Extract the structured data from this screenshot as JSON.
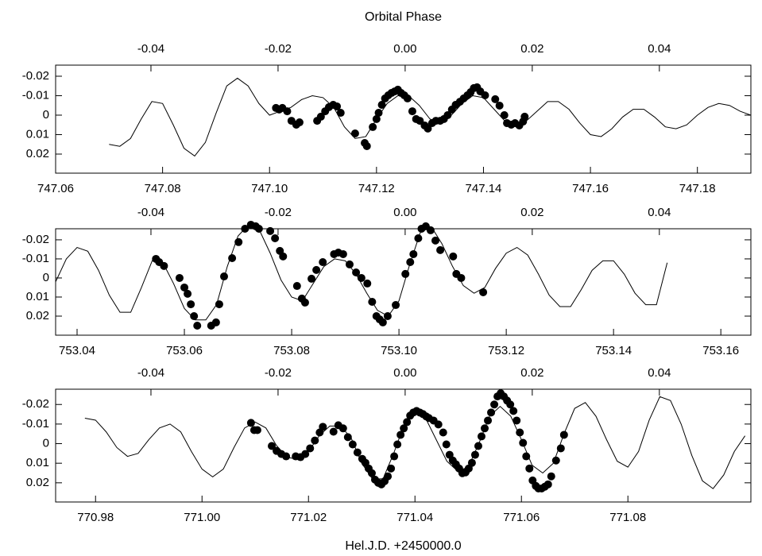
{
  "chart_data": [
    {
      "type": "scatter",
      "x2label": "Orbital Phase",
      "xlim": [
        747.06,
        747.19
      ],
      "xticks": [
        747.06,
        747.08,
        {
          "value": 747.1,
          "label": "747.10"
        },
        747.12,
        747.14,
        747.16,
        747.18
      ],
      "x2lim": [
        -0.055,
        0.0544
      ],
      "x2ticks": [
        -0.04,
        -0.02,
        {
          "value": 0,
          "label": "0.00"
        },
        0.02,
        0.04
      ],
      "ylim": [
        0.0298,
        -0.0257
      ],
      "yticks": [
        -0.02,
        -0.01,
        0,
        0.01,
        0.02
      ],
      "series": [
        {
          "type": "scatter",
          "color": "#000000",
          "x": [
            747.1012,
            747.1018,
            747.1024,
            747.1033,
            747.1041,
            747.105,
            747.1056,
            747.1089,
            747.1096,
            747.1104,
            747.1111,
            747.1119,
            747.1126,
            747.1133,
            747.116,
            747.1178,
            747.1182,
            747.1193,
            747.12,
            747.1204,
            747.121,
            747.1216,
            747.1222,
            747.1228,
            747.1234,
            747.124,
            747.1246,
            747.1252,
            747.1258,
            747.1267,
            747.1274,
            747.1281,
            747.129,
            747.1296,
            747.1304,
            747.1311,
            747.1319,
            747.1326,
            747.1333,
            747.1341,
            747.1348,
            747.1356,
            747.1363,
            747.137,
            747.1376,
            747.1382,
            747.1388,
            747.1394,
            747.1403,
            747.1422,
            747.143,
            747.1439,
            747.1444,
            747.1452,
            747.1459,
            747.1467,
            747.1474,
            747.1477
          ],
          "values": [
            -0.0037,
            -0.0029,
            -0.0037,
            -0.002,
            0.0029,
            0.0049,
            0.0037,
            0.0029,
            0.0008,
            -0.002,
            -0.0041,
            -0.0053,
            -0.0045,
            -0.0012,
            0.0094,
            0.0143,
            0.0159,
            0.0061,
            0.002,
            -0.0012,
            -0.0053,
            -0.0086,
            -0.0102,
            -0.0114,
            -0.0122,
            -0.0131,
            -0.0114,
            -0.0102,
            -0.0086,
            -0.002,
            0.002,
            0.0029,
            0.0053,
            0.0069,
            0.0041,
            0.0029,
            0.0029,
            0.002,
            0,
            -0.0029,
            -0.0053,
            -0.0069,
            -0.0086,
            -0.0102,
            -0.0118,
            -0.0139,
            -0.0143,
            -0.0122,
            -0.0102,
            -0.0082,
            -0.0049,
            0,
            0.0041,
            0.0049,
            0.0041,
            0.0053,
            0.0033,
            0.0008
          ]
        },
        {
          "type": "line",
          "color": "#000000",
          "x": [
            747.07,
            747.072,
            747.074,
            747.076,
            747.078,
            747.08,
            747.082,
            747.084,
            747.086,
            747.088,
            747.09,
            747.092,
            747.094,
            747.096,
            747.098,
            747.1,
            747.102,
            747.104,
            747.106,
            747.108,
            747.11,
            747.112,
            747.114,
            747.116,
            747.118,
            747.12,
            747.122,
            747.124,
            747.126,
            747.128,
            747.13,
            747.132,
            747.134,
            747.136,
            747.138,
            747.14,
            747.142,
            747.144,
            747.146,
            747.148,
            747.15,
            747.152,
            747.154,
            747.156,
            747.158,
            747.16,
            747.162,
            747.164,
            747.166,
            747.168,
            747.17,
            747.172,
            747.174,
            747.176,
            747.178,
            747.18,
            747.182,
            747.184,
            747.186,
            747.188,
            747.19
          ],
          "values": [
            0.015,
            0.016,
            0.012,
            0.002,
            -0.007,
            -0.006,
            0.005,
            0.017,
            0.021,
            0.014,
            -0.001,
            -0.015,
            -0.019,
            -0.015,
            -0.006,
            0,
            -0.002,
            -0.004,
            -0.008,
            -0.01,
            -0.009,
            -0.004,
            0.006,
            0.012,
            0.011,
            0.002,
            -0.006,
            -0.01,
            -0.01,
            -0.005,
            0.002,
            0.004,
            0,
            -0.006,
            -0.01,
            -0.009,
            -0.003,
            0.003,
            0.005,
            0.003,
            -0.002,
            -0.007,
            -0.007,
            -0.003,
            0.004,
            0.01,
            0.011,
            0.007,
            0.001,
            -0.003,
            -0.003,
            0.001,
            0.006,
            0.007,
            0.005,
            0,
            -0.004,
            -0.006,
            -0.005,
            -0.002,
            0
          ]
        }
      ]
    },
    {
      "type": "scatter",
      "xlim": [
        753.036,
        753.1656
      ],
      "xticks": [
        753.04,
        753.06,
        753.08,
        {
          "value": 753.1,
          "label": "753.10"
        },
        753.12,
        753.14,
        753.16
      ],
      "x2lim": [
        -0.055,
        0.0544
      ],
      "x2ticks": [
        -0.04,
        -0.02,
        {
          "value": 0,
          "label": "0.00"
        },
        0.02,
        0.04
      ],
      "ylim": [
        0.03,
        -0.0258
      ],
      "yticks": [
        -0.02,
        -0.01,
        0,
        0.01,
        0.02
      ],
      "series": [
        {
          "type": "scatter",
          "color": "#000000",
          "x": [
            753.0547,
            753.0553,
            753.0562,
            753.0591,
            753.06,
            753.0606,
            753.0612,
            753.0618,
            753.0624,
            753.065,
            753.0659,
            753.0665,
            753.0674,
            753.0689,
            753.0701,
            753.0713,
            753.0724,
            753.0733,
            753.0739,
            753.076,
            753.0769,
            753.0778,
            753.0784,
            753.081,
            753.0819,
            753.0825,
            753.0837,
            753.0846,
            753.0858,
            753.0879,
            753.0887,
            753.0896,
            753.0908,
            753.092,
            753.093,
            753.0941,
            753.095,
            753.0958,
            753.0964,
            753.097,
            753.0979,
            753.0994,
            753.1012,
            753.1021,
            753.1027,
            753.1036,
            753.1042,
            753.105,
            753.1059,
            753.1068,
            753.1077,
            753.1101,
            753.1107,
            753.1116,
            753.1157
          ],
          "values": [
            -0.01,
            -0.0083,
            -0.0063,
            0,
            0.005,
            0.0083,
            0.0138,
            0.02,
            0.025,
            0.025,
            0.0233,
            0.0138,
            -0.0008,
            -0.0104,
            -0.0188,
            -0.0258,
            -0.0279,
            -0.0271,
            -0.0258,
            -0.0246,
            -0.0208,
            -0.0142,
            -0.0113,
            0.0042,
            0.0108,
            0.0129,
            0.0004,
            -0.0042,
            -0.0083,
            -0.0125,
            -0.0133,
            -0.0125,
            -0.0071,
            -0.0029,
            0,
            0.0029,
            0.0125,
            0.02,
            0.0217,
            0.0233,
            0.02,
            0.0142,
            -0.0021,
            -0.0083,
            -0.0125,
            -0.0208,
            -0.0258,
            -0.0271,
            -0.025,
            -0.0196,
            -0.0146,
            -0.0113,
            -0.0021,
            0,
            0.0075
          ]
        },
        {
          "type": "line",
          "color": "#000000",
          "x": [
            753.036,
            753.038,
            753.04,
            753.042,
            753.044,
            753.046,
            753.048,
            753.05,
            753.052,
            753.054,
            753.056,
            753.058,
            753.06,
            753.062,
            753.064,
            753.066,
            753.068,
            753.07,
            753.072,
            753.074,
            753.076,
            753.078,
            753.08,
            753.082,
            753.084,
            753.086,
            753.088,
            753.09,
            753.092,
            753.094,
            753.096,
            753.098,
            753.1,
            753.102,
            753.104,
            753.106,
            753.108,
            753.11,
            753.112,
            753.114,
            753.116,
            753.118,
            753.12,
            753.122,
            753.124,
            753.126,
            753.128,
            753.13,
            753.132,
            753.134,
            753.136,
            753.138,
            753.14,
            753.142,
            753.144,
            753.146,
            753.148,
            753.15
          ],
          "values": [
            0.002,
            -0.01,
            -0.016,
            -0.014,
            -0.004,
            0.009,
            0.018,
            0.018,
            0.005,
            -0.009,
            -0.008,
            0.003,
            0.016,
            0.022,
            0.022,
            0.014,
            -0.006,
            -0.022,
            -0.028,
            -0.025,
            -0.013,
            0.001,
            0.01,
            0.012,
            0.003,
            -0.006,
            -0.01,
            -0.009,
            -0.002,
            0.008,
            0.017,
            0.02,
            0.012,
            -0.007,
            -0.024,
            -0.027,
            -0.018,
            -0.006,
            0.004,
            0.008,
            0.005,
            -0.005,
            -0.013,
            -0.016,
            -0.012,
            -0.002,
            0.009,
            0.015,
            0.015,
            0.006,
            -0.004,
            -0.009,
            -0.009,
            -0.002,
            0.008,
            0.014,
            0.014,
            -0.008
          ]
        }
      ]
    },
    {
      "type": "scatter",
      "xlabel": "Hel.J.D. +2450000.0",
      "xlim": [
        770.9725,
        771.1031
      ],
      "xticks": [
        770.98,
        {
          "value": 771,
          "label": "771.00"
        },
        771.02,
        771.04,
        771.06,
        771.08
      ],
      "x2lim": [
        -0.055,
        0.0544
      ],
      "x2ticks": [
        -0.04,
        -0.02,
        {
          "value": 0,
          "label": "0.00"
        },
        0.02,
        0.04
      ],
      "ylim": [
        0.0298,
        -0.0278
      ],
      "yticks": [
        -0.02,
        -0.01,
        0,
        0.01,
        0.02
      ],
      "series": [
        {
          "type": "scatter",
          "color": "#000000",
          "x": [
            771.0092,
            771.0098,
            771.0104,
            771.0131,
            771.014,
            771.0149,
            771.0158,
            771.0176,
            771.0185,
            771.0194,
            771.0203,
            771.0212,
            771.0221,
            771.0227,
            771.0247,
            771.0256,
            771.0265,
            771.0274,
            771.0283,
            771.0292,
            771.0301,
            771.0307,
            771.0313,
            771.0319,
            771.0325,
            771.0331,
            771.0337,
            771.0343,
            771.0349,
            771.0355,
            771.0361,
            771.0367,
            771.0373,
            771.0379,
            771.0385,
            771.0391,
            771.0397,
            771.0403,
            771.0409,
            771.0415,
            771.0421,
            771.0426,
            771.0435,
            771.0444,
            771.0453,
            771.0459,
            771.0465,
            771.0471,
            771.0477,
            771.0483,
            771.0489,
            771.0495,
            771.0501,
            771.0507,
            771.0513,
            771.0519,
            771.0525,
            771.0531,
            771.0537,
            771.0543,
            771.0549,
            771.0555,
            771.0561,
            771.0567,
            771.0573,
            771.0579,
            771.0585,
            771.0591,
            771.0597,
            771.0603,
            771.0609,
            771.0615,
            771.0621,
            771.0627,
            771.0632,
            771.0638,
            771.0644,
            771.065,
            771.0656,
            771.0665,
            771.0674,
            771.068
          ],
          "values": [
            -0.0106,
            -0.0069,
            -0.0069,
            0.0012,
            0.0037,
            0.0053,
            0.0065,
            0.0065,
            0.0069,
            0.0053,
            0.0024,
            -0.0016,
            -0.0057,
            -0.0086,
            -0.0061,
            -0.0094,
            -0.0078,
            -0.0033,
            0.0004,
            0.0045,
            0.0078,
            0.0098,
            0.0127,
            0.0151,
            0.0184,
            0.02,
            0.0208,
            0.0192,
            0.0167,
            0.0127,
            0.0065,
            0.0004,
            -0.0045,
            -0.0078,
            -0.011,
            -0.0143,
            -0.0159,
            -0.0167,
            -0.0159,
            -0.0151,
            -0.0139,
            -0.0131,
            -0.0118,
            -0.0098,
            -0.0057,
            0.0004,
            0.0057,
            0.0086,
            0.0106,
            0.0127,
            0.0151,
            0.0147,
            0.0127,
            0.0098,
            0.0057,
            0.0012,
            -0.0037,
            -0.0078,
            -0.0118,
            -0.0159,
            -0.02,
            -0.0241,
            -0.0257,
            -0.0241,
            -0.022,
            -0.02,
            -0.0167,
            -0.0118,
            -0.0057,
            -0.0004,
            0.0065,
            0.0127,
            0.0188,
            0.0216,
            0.0229,
            0.0229,
            0.022,
            0.0208,
            0.0167,
            0.0086,
            0.0024,
            -0.0045
          ]
        },
        {
          "type": "line",
          "color": "#000000",
          "x": [
            770.978,
            770.98,
            770.982,
            770.984,
            770.986,
            770.988,
            770.99,
            770.992,
            770.994,
            770.996,
            770.998,
            771.0,
            771.002,
            771.004,
            771.006,
            771.008,
            771.01,
            771.012,
            771.014,
            771.016,
            771.018,
            771.02,
            771.022,
            771.024,
            771.026,
            771.028,
            771.03,
            771.032,
            771.034,
            771.036,
            771.038,
            771.04,
            771.042,
            771.044,
            771.046,
            771.048,
            771.05,
            771.052,
            771.054,
            771.056,
            771.058,
            771.06,
            771.062,
            771.064,
            771.066,
            771.068,
            771.07,
            771.072,
            771.074,
            771.076,
            771.078,
            771.08,
            771.082,
            771.084,
            771.086,
            771.088,
            771.09,
            771.092,
            771.094,
            771.096,
            771.098,
            771.1,
            771.102
          ],
          "values": [
            -0.013,
            -0.012,
            -0.006,
            0.002,
            0.0065,
            0.005,
            -0.002,
            -0.008,
            -0.01,
            -0.006,
            0.004,
            0.013,
            0.017,
            0.013,
            0.002,
            -0.008,
            -0.011,
            -0.008,
            0.001,
            0.007,
            0.008,
            0.004,
            -0.004,
            -0.009,
            -0.009,
            -0.003,
            0.01,
            0.018,
            0.018,
            0.005,
            -0.01,
            -0.016,
            -0.013,
            -0.002,
            0.009,
            0.014,
            0.012,
            0,
            -0.014,
            -0.019,
            -0.014,
            -0.002,
            0.011,
            0.015,
            0.01,
            -0.005,
            -0.018,
            -0.021,
            -0.014,
            -0.002,
            0.009,
            0.012,
            0.004,
            -0.012,
            -0.024,
            -0.022,
            -0.01,
            0.006,
            0.019,
            0.023,
            0.016,
            0.004,
            -0.004
          ]
        }
      ]
    }
  ]
}
